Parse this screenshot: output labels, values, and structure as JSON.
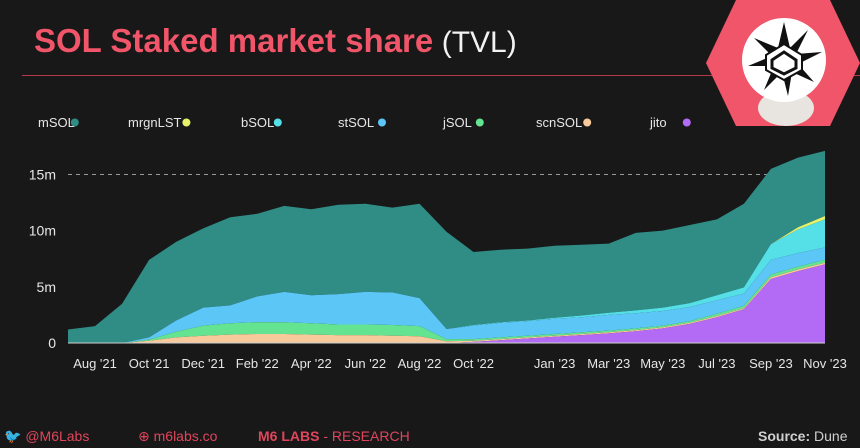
{
  "header": {
    "title_main": "SOL Staked market share",
    "title_sub": "(TVL)"
  },
  "footer": {
    "twitter_handle": "@M6Labs",
    "website": "m6labs.co",
    "brand": "M6 LABS",
    "brand_section": " - RESEARCH",
    "source_label": "Source:",
    "source_value": "Dune"
  },
  "colors": {
    "background": "#181818",
    "title_accent": "#f0556a",
    "rule": "#b5384b",
    "footer_accent": "#e0455c",
    "logo_bg": "#f0556a"
  },
  "icons": [
    "twitter-icon",
    "globe-icon",
    "m6-logo"
  ],
  "chart_data": {
    "type": "area",
    "stacked": true,
    "x": [
      "Jul '21",
      "Aug '21",
      "Sep '21",
      "Oct '21",
      "Nov '21",
      "Dec '21",
      "Jan '22",
      "Feb '22",
      "Mar '22",
      "Apr '22",
      "May '22",
      "Jun '22",
      "Jul '22",
      "Aug '22",
      "Sep '22",
      "Oct '22",
      "Nov '22",
      "Dec '22",
      "Jan '23",
      "Feb '23",
      "Mar '23",
      "Apr '23",
      "May '23",
      "Jun '23",
      "Jul '23",
      "Aug '23",
      "Sep '23",
      "Oct '23",
      "Nov '23"
    ],
    "x_tick_labels": [
      "Aug '21",
      "Oct '21",
      "Dec '21",
      "Feb '22",
      "Apr '22",
      "Jun '22",
      "Aug '22",
      "Oct '22",
      "Jan '23",
      "Mar '23",
      "May '23",
      "Jul '23",
      "Sep '23",
      "Nov '23"
    ],
    "y_ticks": [
      "0",
      "5m",
      "10m",
      "15m"
    ],
    "ylim": [
      0,
      17000000
    ],
    "reference_line": 15000000,
    "legend_position": "top",
    "series": [
      {
        "name": "jito",
        "color": "#b36bf5",
        "values": [
          0,
          0,
          0,
          0,
          0,
          0,
          0,
          0,
          0,
          0,
          0,
          0,
          0,
          0,
          0,
          100000,
          250000,
          400000,
          550000,
          700000,
          850000,
          1050000,
          1300000,
          1700000,
          2300000,
          3000000,
          5700000,
          6400000,
          7000000
        ]
      },
      {
        "name": "scnSOL",
        "color": "#f7c99b",
        "values": [
          0,
          0,
          0,
          200000,
          500000,
          650000,
          750000,
          800000,
          800000,
          750000,
          700000,
          700000,
          650000,
          600000,
          150000,
          100000,
          100000,
          100000,
          100000,
          100000,
          100000,
          100000,
          100000,
          100000,
          100000,
          100000,
          150000,
          150000,
          150000
        ]
      },
      {
        "name": "jSOL",
        "color": "#64e391",
        "values": [
          0,
          0,
          0,
          100000,
          500000,
          900000,
          1000000,
          1050000,
          1050000,
          1000000,
          950000,
          950000,
          950000,
          900000,
          200000,
          150000,
          150000,
          150000,
          150000,
          150000,
          150000,
          150000,
          150000,
          150000,
          200000,
          200000,
          250000,
          250000,
          250000
        ]
      },
      {
        "name": "stSOL",
        "color": "#5cc6f7",
        "values": [
          0,
          0,
          0,
          200000,
          1000000,
          1600000,
          1600000,
          2300000,
          2700000,
          2500000,
          2700000,
          2900000,
          2900000,
          2500000,
          900000,
          1200000,
          1300000,
          1300000,
          1350000,
          1350000,
          1400000,
          1350000,
          1300000,
          1250000,
          1200000,
          1100000,
          1300000,
          1200000,
          1100000
        ]
      },
      {
        "name": "bSOL",
        "color": "#55dfe6",
        "values": [
          0,
          0,
          0,
          0,
          0,
          0,
          0,
          0,
          0,
          0,
          0,
          0,
          0,
          0,
          0,
          50000,
          50000,
          50000,
          100000,
          150000,
          200000,
          250000,
          300000,
          350000,
          450000,
          550000,
          1400000,
          2100000,
          2500000
        ]
      },
      {
        "name": "mrgnLST",
        "color": "#e6f26a",
        "values": [
          0,
          0,
          0,
          0,
          0,
          0,
          0,
          0,
          0,
          0,
          0,
          0,
          0,
          0,
          0,
          0,
          0,
          0,
          0,
          0,
          0,
          0,
          0,
          0,
          0,
          0,
          0,
          200000,
          300000
        ]
      },
      {
        "name": "mSOL",
        "color": "#2f8d86",
        "values": [
          1200000,
          1500000,
          3500000,
          6900000,
          7000000,
          7050000,
          7850000,
          7350000,
          7650000,
          7650000,
          7950000,
          7850000,
          7550000,
          8400000,
          8650000,
          6500000,
          6450000,
          6400000,
          6400000,
          6300000,
          6150000,
          6900000,
          6850000,
          6950000,
          6750000,
          7450000,
          6700000,
          6200000,
          5800000
        ]
      }
    ],
    "legend_order": [
      "mSOL",
      "mrgnLST",
      "bSOL",
      "stSOL",
      "jSOL",
      "scnSOL",
      "jito"
    ]
  }
}
